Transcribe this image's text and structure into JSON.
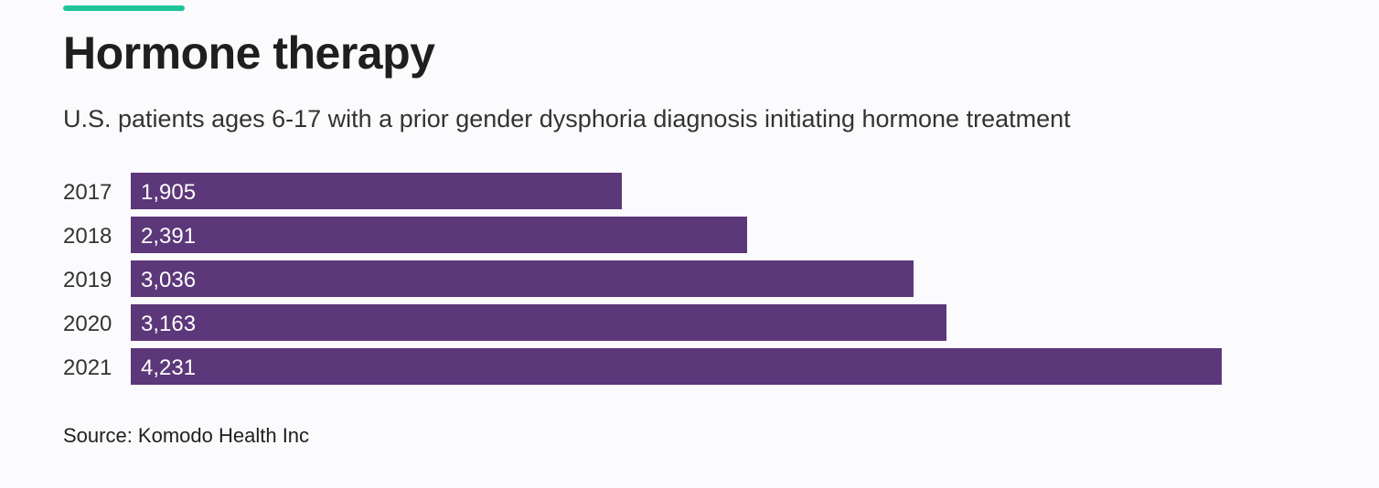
{
  "header": {
    "title": "Hormone therapy",
    "subtitle": "U.S. patients ages 6-17 with a prior gender dysphoria diagnosis initiating hormone treatment"
  },
  "footer": {
    "source": "Source: Komodo Health Inc"
  },
  "colors": {
    "accent": "#1fc49a",
    "bar": "#5c3779",
    "bar_label": "#ffffff",
    "category_label": "#333333",
    "background": "#fbfafc"
  },
  "chart_data": {
    "type": "bar",
    "orientation": "horizontal",
    "categories": [
      "2017",
      "2018",
      "2019",
      "2020",
      "2021"
    ],
    "values": [
      1905,
      2391,
      3036,
      3163,
      4231
    ],
    "value_labels": [
      "1,905",
      "2,391",
      "3,036",
      "3,163",
      "4,231"
    ],
    "title": "Hormone therapy",
    "subtitle": "U.S. patients ages 6-17 with a prior gender dysphoria diagnosis initiating hormone treatment",
    "xlabel": "",
    "ylabel": "",
    "xlim": [
      0,
      4231
    ],
    "grid": false,
    "legend": "none"
  }
}
